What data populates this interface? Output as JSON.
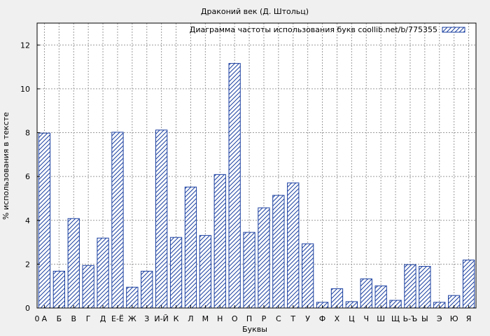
{
  "chart_data": {
    "type": "bar",
    "title": "Драконий век (Д. Штольц)",
    "xlabel": "Буквы",
    "ylabel": "% использования в тексте",
    "ylim": [
      0,
      13
    ],
    "yticks": [
      0,
      2,
      4,
      6,
      8,
      10,
      12
    ],
    "grid": true,
    "legend_position": "top-right",
    "axis_start_label": "0",
    "categories": [
      "А",
      "Б",
      "В",
      "Г",
      "Д",
      "Е-Ё",
      "Ж",
      "З",
      "И-Й",
      "К",
      "Л",
      "М",
      "Н",
      "О",
      "П",
      "Р",
      "С",
      "Т",
      "У",
      "Ф",
      "Х",
      "Ц",
      "Ч",
      "Ш",
      "Щ",
      "Ь-Ъ",
      "Ы",
      "Э",
      "Ю",
      "Я"
    ],
    "series": [
      {
        "name": "Диаграмма частоты использования букв coollib.net/b/775355",
        "values": [
          7.98,
          1.68,
          4.08,
          1.94,
          3.19,
          8.02,
          0.95,
          1.68,
          8.12,
          3.22,
          5.52,
          3.31,
          6.09,
          11.16,
          3.45,
          4.57,
          5.14,
          5.71,
          2.93,
          0.26,
          0.88,
          0.29,
          1.33,
          1.01,
          0.35,
          1.98,
          1.9,
          0.26,
          0.57,
          2.19
        ]
      }
    ],
    "colors": {
      "bar_stroke": "#1a3fa0",
      "hatch": "#1a3fa0",
      "bar_fill": "#ffffff",
      "grid": "#9a9a9a",
      "background": "#f0f0f0"
    }
  }
}
